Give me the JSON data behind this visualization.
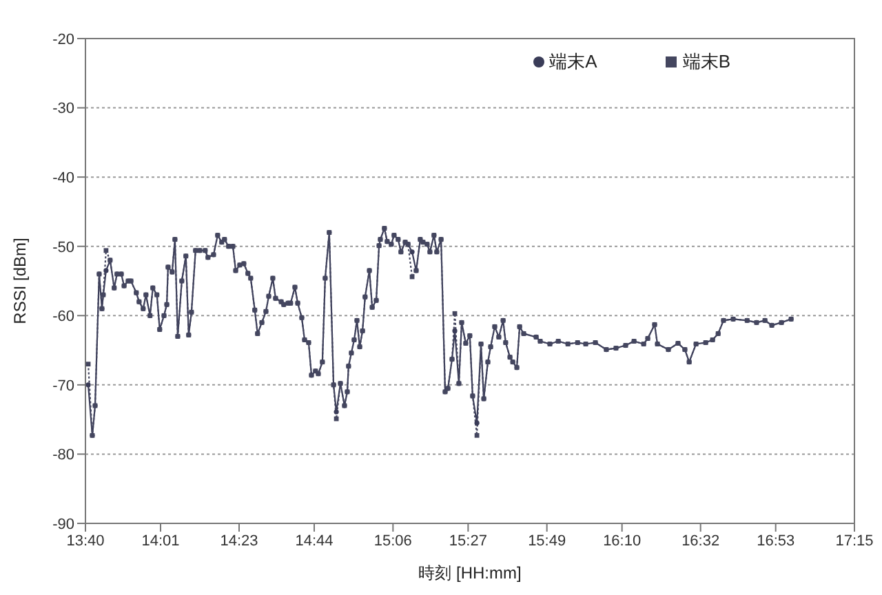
{
  "chart_data": {
    "type": "line",
    "xlabel": "時刻 [HH:mm]",
    "ylabel": "RSSI [dBm]",
    "x": [
      13.68,
      13.699,
      13.712,
      13.731,
      13.744,
      13.75,
      13.763,
      13.782,
      13.801,
      13.814,
      13.834,
      13.847,
      13.866,
      13.879,
      13.904,
      13.917,
      13.936,
      13.949,
      13.968,
      13.981,
      14.0,
      14.013,
      14.033,
      14.046,
      14.052,
      14.071,
      14.084,
      14.097,
      14.116,
      14.135,
      14.148,
      14.161,
      14.18,
      14.2,
      14.225,
      14.238,
      14.264,
      14.283,
      14.302,
      14.315,
      14.334,
      14.354,
      14.367,
      14.386,
      14.405,
      14.424,
      14.437,
      14.456,
      14.469,
      14.489,
      14.508,
      14.521,
      14.54,
      14.553,
      14.579,
      14.591,
      14.611,
      14.623,
      14.643,
      14.656,
      14.675,
      14.688,
      14.707,
      14.72,
      14.739,
      14.752,
      14.771,
      14.784,
      14.803,
      14.823,
      14.836,
      14.855,
      14.874,
      14.887,
      14.893,
      14.906,
      14.919,
      14.932,
      14.945,
      14.958,
      14.97,
      14.99,
      15.003,
      15.022,
      15.035,
      15.041,
      15.06,
      15.073,
      15.092,
      15.105,
      15.124,
      15.137,
      15.157,
      15.17,
      15.189,
      15.208,
      15.227,
      15.24,
      15.259,
      15.272,
      15.291,
      15.304,
      15.324,
      15.343,
      15.356,
      15.375,
      15.388,
      15.407,
      15.42,
      15.439,
      15.458,
      15.471,
      15.491,
      15.51,
      15.523,
      15.542,
      15.555,
      15.574,
      15.593,
      15.613,
      15.625,
      15.645,
      15.658,
      15.677,
      15.69,
      15.709,
      15.767,
      15.786,
      15.831,
      15.87,
      15.915,
      15.96,
      15.998,
      16.043,
      16.094,
      16.139,
      16.184,
      16.223,
      16.268,
      16.287,
      16.319,
      16.332,
      16.383,
      16.428,
      16.46,
      16.48,
      16.512,
      16.557,
      16.589,
      16.615,
      16.64,
      16.685,
      16.75,
      16.794,
      16.833,
      16.865,
      16.91,
      16.955
    ],
    "series": [
      {
        "name": "端末A",
        "color": "#3a3c58",
        "marker": "circle",
        "line_style": "solid",
        "values": [
          -70,
          -77.3,
          -73,
          -54,
          -59,
          -57,
          -53.5,
          -52,
          -56,
          -54,
          -54,
          -55.7,
          -55,
          -55,
          -56.7,
          -58,
          -59,
          -57,
          -60,
          -56,
          -57,
          -62,
          -60,
          -58.4,
          -53,
          -53.7,
          -49,
          -63,
          -55,
          -51.4,
          -62.8,
          -59.5,
          -50.6,
          -50.6,
          -50.6,
          -51.6,
          -51.2,
          -48.4,
          -49.4,
          -49,
          -50,
          -50,
          -53.5,
          -52.7,
          -52.5,
          -53.9,
          -54.6,
          -59.2,
          -62.6,
          -61,
          -59.4,
          -57.2,
          -54.6,
          -57.5,
          -58,
          -58.4,
          -58.2,
          -58.2,
          -55.9,
          -58.2,
          -60.3,
          -63.5,
          -63.9,
          -68.6,
          -68,
          -68.4,
          -66.7,
          -54.6,
          -48,
          -70,
          -73.9,
          -69.8,
          -73,
          -71,
          -67.3,
          -65.4,
          -63.5,
          -60.7,
          -64.5,
          -62.2,
          -57.3,
          -53.5,
          -58.8,
          -57.8,
          -49.9,
          -49,
          -47.4,
          -49.3,
          -49.7,
          -48.4,
          -49,
          -50.8,
          -49.4,
          -49.7,
          -50.8,
          -53.5,
          -49,
          -49.4,
          -49.7,
          -50.8,
          -48.4,
          -50.8,
          -49,
          -71,
          -70.5,
          -66.3,
          -62.2,
          -69.8,
          -61,
          -64,
          -62.9,
          -71.6,
          -75.5,
          -64.1,
          -72,
          -66.7,
          -64.5,
          -61.6,
          -63.1,
          -60.7,
          -63.9,
          -66,
          -66.7,
          -67.5,
          -61.6,
          -62.6,
          -63.1,
          -63.7,
          -64.1,
          -63.7,
          -64.1,
          -63.9,
          -64.1,
          -63.9,
          -64.9,
          -64.7,
          -64.3,
          -63.7,
          -64.1,
          -63.3,
          -61.3,
          -64.1,
          -64.9,
          -64,
          -64.9,
          -66.7,
          -64.1,
          -63.9,
          -63.5,
          -62.6,
          -60.7,
          -60.5,
          -60.7,
          -61,
          -60.7,
          -61.4,
          -61,
          -60.5
        ]
      },
      {
        "name": "端末B",
        "color": "#44465f",
        "marker": "square",
        "line_style": "dotted",
        "values": [
          -67,
          -77.3,
          -73,
          -54,
          -59,
          -57,
          -50.6,
          -52,
          -56,
          -54,
          -54,
          -55.7,
          -55,
          -55,
          -56.7,
          -58,
          -59,
          -57,
          -60,
          -56,
          -57,
          -62,
          -60,
          -58.4,
          -53,
          -53.7,
          -49,
          -63,
          -55,
          -51.4,
          -62.8,
          -59.5,
          -50.6,
          -50.6,
          -50.6,
          -51.6,
          -51.2,
          -48.4,
          -49.4,
          -49,
          -50,
          -50,
          -53.5,
          -52.7,
          -52.5,
          -53.9,
          -54.6,
          -59.2,
          -62.6,
          -61,
          -59.4,
          -57.2,
          -54.6,
          -57.5,
          -58,
          -58.4,
          -58.2,
          -58.2,
          -55.9,
          -58.2,
          -60.3,
          -63.5,
          -63.9,
          -68.6,
          -68,
          -68.4,
          -66.7,
          -54.6,
          -48,
          -70,
          -74.9,
          -69.8,
          -73,
          -71,
          -67.3,
          -65.4,
          -63.5,
          -60.7,
          -64.5,
          -62.2,
          -57.3,
          -53.5,
          -58.8,
          -57.8,
          -49.9,
          -49,
          -47.4,
          -49.3,
          -49.7,
          -48.4,
          -49,
          -50.8,
          -49.4,
          -49.7,
          -54.4,
          -53.5,
          -49,
          -49.4,
          -49.7,
          -50.8,
          -48.4,
          -50.8,
          -49,
          -71,
          -70.5,
          -66.3,
          -59.7,
          -69.8,
          -61,
          -64,
          -62.9,
          -71.6,
          -77.3,
          -64.1,
          -72,
          -66.7,
          -64.5,
          -61.6,
          -63.1,
          -60.7,
          -63.9,
          -66,
          -66.7,
          -67.5,
          -61.6,
          -62.6,
          -63.1,
          -63.7,
          -64.1,
          -63.7,
          -64.1,
          -63.9,
          -64.1,
          -63.9,
          -64.9,
          -64.7,
          -64.3,
          -63.7,
          -64.1,
          -63.3,
          -61.3,
          -64.1,
          -64.9,
          -64,
          -64.9,
          -66.7,
          -64.1,
          -63.9,
          -63.5,
          -62.6,
          -60.7,
          -60.5,
          -60.7,
          -61,
          -60.7,
          -61.4,
          -61,
          -60.5
        ]
      }
    ],
    "xlim": [
      13.667,
      17.25
    ],
    "xticks": [
      {
        "value": 13.667,
        "label": "13:40"
      },
      {
        "value": 14.017,
        "label": "14:01"
      },
      {
        "value": 14.383,
        "label": "14:23"
      },
      {
        "value": 14.733,
        "label": "14:44"
      },
      {
        "value": 15.1,
        "label": "15:06"
      },
      {
        "value": 15.45,
        "label": "15:27"
      },
      {
        "value": 15.817,
        "label": "15:49"
      },
      {
        "value": 16.167,
        "label": "16:10"
      },
      {
        "value": 16.533,
        "label": "16:32"
      },
      {
        "value": 16.883,
        "label": "16:53"
      },
      {
        "value": 17.25,
        "label": "17:15"
      }
    ],
    "ylim": [
      -90,
      -20
    ],
    "yticks": [
      -90,
      -80,
      -70,
      -60,
      -50,
      -40,
      -30,
      -20
    ],
    "grid": "y",
    "legend": "top right"
  }
}
